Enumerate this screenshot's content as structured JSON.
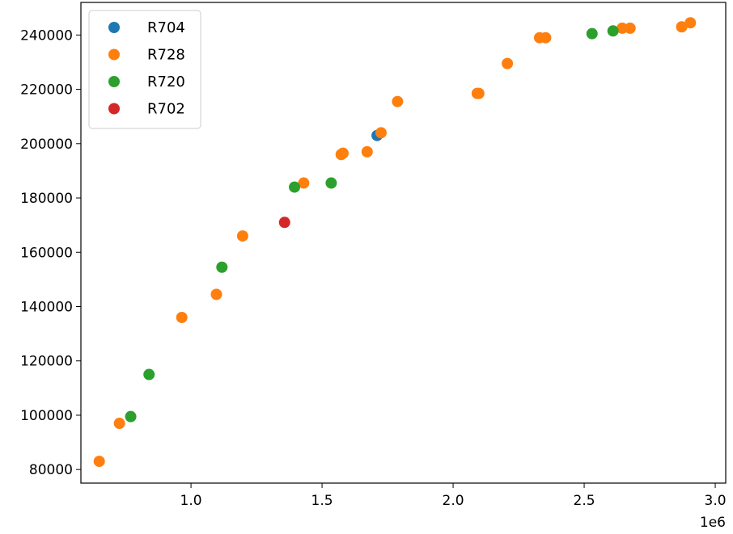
{
  "chart_data": {
    "type": "scatter",
    "title": "",
    "xlabel": "",
    "ylabel": "",
    "x_offset_label": "1e6",
    "xlim": [
      580000,
      3040000
    ],
    "ylim": [
      75000,
      252000
    ],
    "x_ticks": [
      1000000,
      1500000,
      2000000,
      2500000,
      3000000
    ],
    "x_tick_labels": [
      "1.0",
      "1.5",
      "2.0",
      "2.5",
      "3.0"
    ],
    "y_ticks": [
      80000,
      100000,
      120000,
      140000,
      160000,
      180000,
      200000,
      220000,
      240000
    ],
    "y_tick_labels": [
      "80000",
      "100000",
      "120000",
      "140000",
      "160000",
      "180000",
      "200000",
      "220000",
      "240000"
    ],
    "grid": false,
    "legend_position": "top-left",
    "series": [
      {
        "name": "R704",
        "color": "#1f77b4",
        "points": [
          [
            1710000,
            203000
          ]
        ]
      },
      {
        "name": "R728",
        "color": "#ff7f0e",
        "points": [
          [
            650000,
            83000
          ],
          [
            727000,
            97000
          ],
          [
            965000,
            136000
          ],
          [
            1097000,
            144500
          ],
          [
            1197000,
            166000
          ],
          [
            1430000,
            185500
          ],
          [
            1573000,
            196000
          ],
          [
            1580000,
            196500
          ],
          [
            1672000,
            197000
          ],
          [
            1725000,
            204000
          ],
          [
            1788000,
            215500
          ],
          [
            2092000,
            218500
          ],
          [
            2098000,
            218500
          ],
          [
            2207000,
            229500
          ],
          [
            2330000,
            239000
          ],
          [
            2353000,
            239000
          ],
          [
            2645000,
            242500
          ],
          [
            2675000,
            242500
          ],
          [
            2872000,
            243000
          ],
          [
            2905000,
            244500
          ]
        ]
      },
      {
        "name": "R720",
        "color": "#2ca02c",
        "points": [
          [
            770000,
            99500
          ],
          [
            840000,
            115000
          ],
          [
            1118000,
            154500
          ],
          [
            1395000,
            184000
          ],
          [
            1535000,
            185500
          ],
          [
            2530000,
            240500
          ],
          [
            2610000,
            241500
          ]
        ]
      },
      {
        "name": "R702",
        "color": "#d62728",
        "points": [
          [
            1357000,
            171000
          ]
        ]
      }
    ]
  }
}
